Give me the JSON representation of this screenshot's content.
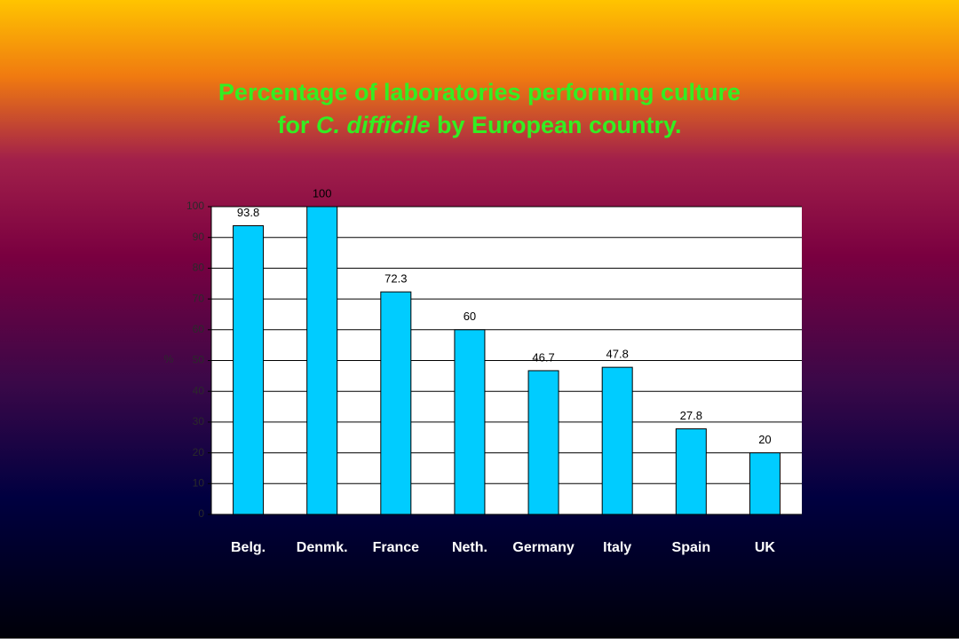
{
  "chart_data": {
    "type": "bar",
    "title": [
      "Percentage of laboratories performing culture",
      "for ",
      "C. difficile",
      " by European country."
    ],
    "y_label": "%",
    "categories": [
      "Belg.",
      "Denmk.",
      "France",
      "Neth.",
      "Germany",
      "Italy",
      "Spain",
      "UK"
    ],
    "values": [
      93.8,
      100,
      72.3,
      60,
      46.7,
      47.8,
      27.8,
      20
    ],
    "color": "#00ccff",
    "ylim": [
      0,
      100
    ],
    "yticks": [
      0,
      10,
      20,
      30,
      40,
      50,
      60,
      70,
      80,
      90,
      100
    ],
    "grid": true
  }
}
